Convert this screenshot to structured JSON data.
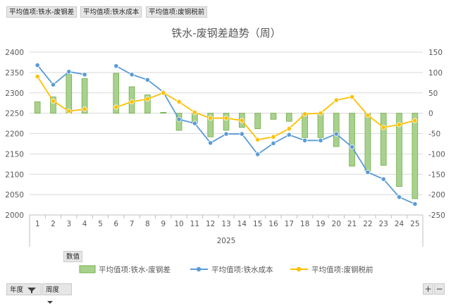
{
  "pivot_fields": {
    "values": [
      "平均值项:铁水-废钢差",
      "平均值项:铁水成本",
      "平均值项:废钢税前"
    ],
    "values_area_label": "数值",
    "filters": [
      {
        "label": "年度",
        "icon": "filter-funnel-icon"
      },
      {
        "label": "周度",
        "icon": "dropdown-arrow-icon"
      }
    ]
  },
  "zoom": {
    "plus": "+",
    "minus": "−"
  },
  "colors": {
    "bar_fill": "#a9d18e",
    "bar_stroke": "#70ad47",
    "line_blue": "#5b9bd5",
    "line_yellow": "#ffc000",
    "grid": "#d9d9d9"
  },
  "chart_data": {
    "type": "bar+line",
    "title": "铁水-废钢差趋势（周）",
    "x": [
      1,
      2,
      3,
      4,
      5,
      6,
      7,
      8,
      9,
      10,
      11,
      12,
      13,
      14,
      15,
      16,
      17,
      18,
      19,
      20,
      21,
      22,
      23,
      24,
      25
    ],
    "x_group_label": "2025",
    "y_left": {
      "min": 2000,
      "max": 2400,
      "ticks": [
        2000,
        2050,
        2100,
        2150,
        2200,
        2250,
        2300,
        2350,
        2400
      ]
    },
    "y_right": {
      "min": -250,
      "max": 150,
      "ticks": [
        -250,
        -200,
        -150,
        -100,
        -50,
        0,
        50,
        100,
        150
      ]
    },
    "grid": true,
    "legend_position": "bottom",
    "series": [
      {
        "name": "平均值项:铁水-废钢差",
        "type": "bar",
        "axis": "right",
        "values": [
          28,
          40,
          95,
          85,
          null,
          98,
          65,
          45,
          2,
          -42,
          -25,
          -58,
          -42,
          -35,
          -38,
          -15,
          -20,
          -60,
          -60,
          -82,
          -130,
          -142,
          -128,
          -180,
          -210
        ]
      },
      {
        "name": "平均值项:铁水成本",
        "type": "line",
        "axis": "left",
        "values": [
          2368,
          2320,
          2352,
          2345,
          null,
          2366,
          2345,
          2332,
          2302,
          2235,
          2225,
          2177,
          2199,
          2199,
          2149,
          2176,
          2197,
          2183,
          2183,
          2199,
          2167,
          2105,
          2088,
          2044,
          2027
        ]
      },
      {
        "name": "平均值项:废钢税前",
        "type": "line",
        "axis": "right",
        "values": [
          90,
          30,
          5,
          10,
          null,
          15,
          28,
          35,
          50,
          28,
          2,
          -12,
          -12,
          -18,
          -65,
          -58,
          -38,
          -2,
          0,
          32,
          40,
          -5,
          -35,
          -28,
          -18
        ]
      }
    ]
  }
}
